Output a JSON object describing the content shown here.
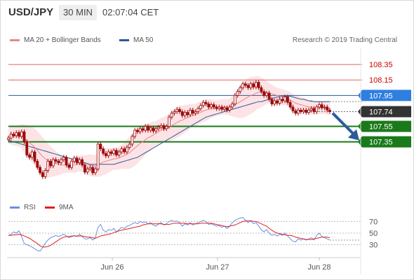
{
  "header": {
    "symbol": "USD/JPY",
    "timeframe": "30 MIN",
    "time": "02:07:04 CET"
  },
  "legend": {
    "ma20": "MA 20 + Bollinger Bands",
    "ma50": "MA 50",
    "credit": "Research © 2019 Trading Central"
  },
  "rsi_legend": {
    "rsi": "RSI",
    "ma9": "9MA"
  },
  "colors": {
    "ma20": "#e9868a",
    "bands": "#fcd7dc",
    "ma50": "#2d5a99",
    "candle": "#9b0d0d",
    "support": "#1a7a1a",
    "resistance": "#e06060",
    "pivot": "#2d5a99",
    "arrow": "#2d5a99",
    "rsi": "#6a8fe0",
    "rsi_ma": "#e02020",
    "current_box": "#333333"
  },
  "chart_data": {
    "type": "candlestick",
    "x_ticks": [
      "Jun 26",
      "Jun 27",
      "Jun 28"
    ],
    "price_labels": [
      {
        "kind": "resistance",
        "value": "108.35"
      },
      {
        "kind": "resistance",
        "value": "108.15"
      },
      {
        "kind": "pivot",
        "value": "107.95"
      },
      {
        "kind": "current",
        "value": "107.74"
      },
      {
        "kind": "support",
        "value": "107.55"
      },
      {
        "kind": "support",
        "value": "107.35"
      }
    ],
    "ylim": [
      106.65,
      108.55
    ],
    "closes": [
      107.4,
      107.45,
      107.43,
      107.47,
      107.42,
      107.48,
      107.35,
      107.18,
      107.15,
      107.22,
      107.1,
      107.02,
      106.95,
      106.9,
      106.98,
      107.1,
      107.04,
      107.12,
      107.1,
      107.08,
      107.12,
      107.15,
      107.05,
      107.02,
      107.1,
      107.14,
      107.08,
      107.12,
      107.05,
      106.96,
      107.0,
      107.02,
      106.95,
      107.0,
      107.32,
      107.26,
      107.2,
      107.17,
      107.22,
      107.2,
      107.24,
      107.18,
      107.22,
      107.26,
      107.22,
      107.28,
      107.32,
      107.42,
      107.5,
      107.48,
      107.52,
      107.5,
      107.55,
      107.5,
      107.53,
      107.49,
      107.52,
      107.54,
      107.56,
      107.52,
      107.55,
      107.67,
      107.72,
      107.74,
      107.77,
      107.74,
      107.69,
      107.73,
      107.7,
      107.76,
      107.72,
      107.74,
      107.78,
      107.82,
      107.86,
      107.84,
      107.8,
      107.83,
      107.8,
      107.78,
      107.8,
      107.77,
      107.79,
      107.76,
      107.8,
      107.84,
      107.95,
      108.0,
      108.05,
      108.1,
      108.08,
      108.05,
      108.1,
      108.06,
      108.12,
      108.05,
      108.0,
      107.95,
      107.98,
      107.9,
      107.84,
      107.88,
      107.85,
      107.9,
      107.88,
      107.93,
      107.86,
      107.8,
      107.75,
      107.72,
      107.76,
      107.74,
      107.76,
      107.73,
      107.76,
      107.78,
      107.74,
      107.8,
      107.83,
      107.79,
      107.8,
      107.76,
      107.74
    ],
    "ma20": [
      107.42,
      107.43,
      107.42,
      107.43,
      107.43,
      107.42,
      107.4,
      107.37,
      107.34,
      107.31,
      107.28,
      107.24,
      107.2,
      107.16,
      107.13,
      107.11,
      107.09,
      107.08,
      107.07,
      107.06,
      107.05,
      107.05,
      107.05,
      107.05,
      107.05,
      107.05,
      107.06,
      107.07,
      107.07,
      107.06,
      107.05,
      107.05,
      107.04,
      107.04,
      107.06,
      107.07,
      107.09,
      107.1,
      107.11,
      107.12,
      107.13,
      107.13,
      107.14,
      107.16,
      107.17,
      107.19,
      107.21,
      107.24,
      107.27,
      107.3,
      107.33,
      107.35,
      107.38,
      107.4,
      107.42,
      107.44,
      107.46,
      107.48,
      107.5,
      107.51,
      107.52,
      107.54,
      107.56,
      107.58,
      107.6,
      107.62,
      107.63,
      107.65,
      107.66,
      107.68,
      107.69,
      107.7,
      107.72,
      107.73,
      107.75,
      107.76,
      107.77,
      107.78,
      107.78,
      107.79,
      107.79,
      107.8,
      107.8,
      107.8,
      107.8,
      107.81,
      107.83,
      107.85,
      107.87,
      107.89,
      107.91,
      107.93,
      107.95,
      107.96,
      107.98,
      107.99,
      107.99,
      107.99,
      107.99,
      107.98,
      107.97,
      107.96,
      107.95,
      107.94,
      107.93,
      107.92,
      107.91,
      107.89,
      107.87,
      107.85,
      107.84,
      107.83,
      107.82,
      107.81,
      107.8,
      107.8,
      107.79,
      107.79,
      107.79,
      107.79,
      107.79,
      107.78,
      107.78
    ],
    "ma50": [
      107.37,
      107.36,
      107.35,
      107.34,
      107.33,
      107.32,
      107.31,
      107.3,
      107.29,
      107.28,
      107.27,
      107.26,
      107.25,
      107.24,
      107.23,
      107.22,
      107.21,
      107.2,
      107.19,
      107.18,
      107.17,
      107.16,
      107.15,
      107.14,
      107.13,
      107.12,
      107.11,
      107.1,
      107.09,
      107.08,
      107.07,
      107.06,
      107.06,
      107.06,
      107.06,
      107.06,
      107.06,
      107.06,
      107.06,
      107.06,
      107.06,
      107.07,
      107.08,
      107.09,
      107.1,
      107.11,
      107.12,
      107.13,
      107.14,
      107.15,
      107.17,
      107.19,
      107.21,
      107.23,
      107.25,
      107.27,
      107.29,
      107.31,
      107.33,
      107.35,
      107.37,
      107.39,
      107.41,
      107.43,
      107.45,
      107.47,
      107.49,
      107.51,
      107.53,
      107.55,
      107.57,
      107.59,
      107.61,
      107.63,
      107.65,
      107.67,
      107.68,
      107.69,
      107.7,
      107.71,
      107.72,
      107.73,
      107.74,
      107.75,
      107.76,
      107.77,
      107.78,
      107.79,
      107.8,
      107.81,
      107.82,
      107.83,
      107.84,
      107.85,
      107.86,
      107.87,
      107.87,
      107.88,
      107.89,
      107.9,
      107.91,
      107.92,
      107.93,
      107.93,
      107.94,
      107.94,
      107.94,
      107.94,
      107.93,
      107.92,
      107.91,
      107.9,
      107.9,
      107.89,
      107.88,
      107.88,
      107.87,
      107.87,
      107.87,
      107.87,
      107.87,
      107.87,
      107.87
    ],
    "band_width": [
      0.1,
      0.11,
      0.12,
      0.13,
      0.14,
      0.16,
      0.18,
      0.2,
      0.22,
      0.23,
      0.24,
      0.25,
      0.25,
      0.25,
      0.24,
      0.22,
      0.2,
      0.18,
      0.16,
      0.14,
      0.12,
      0.11,
      0.1,
      0.1,
      0.1,
      0.1,
      0.1,
      0.1,
      0.11,
      0.12,
      0.13,
      0.14,
      0.14,
      0.14,
      0.16,
      0.17,
      0.17,
      0.17,
      0.16,
      0.15,
      0.14,
      0.14,
      0.15,
      0.16,
      0.17,
      0.19,
      0.21,
      0.22,
      0.23,
      0.23,
      0.22,
      0.21,
      0.2,
      0.19,
      0.18,
      0.17,
      0.16,
      0.16,
      0.16,
      0.16,
      0.17,
      0.18,
      0.19,
      0.2,
      0.2,
      0.2,
      0.19,
      0.18,
      0.17,
      0.16,
      0.15,
      0.14,
      0.14,
      0.14,
      0.14,
      0.14,
      0.13,
      0.12,
      0.11,
      0.1,
      0.1,
      0.1,
      0.1,
      0.1,
      0.11,
      0.13,
      0.16,
      0.19,
      0.21,
      0.23,
      0.24,
      0.24,
      0.24,
      0.23,
      0.22,
      0.21,
      0.19,
      0.17,
      0.15,
      0.13,
      0.12,
      0.11,
      0.1,
      0.1,
      0.1,
      0.1,
      0.1,
      0.1,
      0.1,
      0.1,
      0.1,
      0.1,
      0.1,
      0.1,
      0.09,
      0.09,
      0.09,
      0.09,
      0.08,
      0.08,
      0.08,
      0.08,
      0.08
    ],
    "projection": {
      "from": 107.74,
      "to": 107.35
    },
    "rsi": {
      "levels": [
        70,
        50,
        30
      ],
      "ylim": [
        15,
        85
      ],
      "rsi": [
        46,
        48,
        52,
        50,
        54,
        44,
        32,
        30,
        28,
        26,
        23,
        20,
        19,
        25,
        33,
        38,
        42,
        44,
        46,
        44,
        46,
        48,
        45,
        42,
        44,
        46,
        44,
        48,
        44,
        40,
        40,
        42,
        38,
        42,
        60,
        65,
        55,
        52,
        56,
        55,
        58,
        52,
        56,
        60,
        58,
        62,
        63,
        66,
        68,
        66,
        70,
        68,
        69,
        66,
        68,
        64,
        62,
        66,
        68,
        64,
        66,
        70,
        72,
        70,
        71,
        68,
        62,
        66,
        64,
        68,
        64,
        66,
        68,
        70,
        72,
        70,
        65,
        66,
        64,
        62,
        63,
        60,
        62,
        58,
        62,
        68,
        72,
        74,
        76,
        77,
        72,
        68,
        72,
        66,
        68,
        62,
        56,
        52,
        56,
        50,
        46,
        48,
        45,
        48,
        46,
        50,
        45,
        40,
        36,
        35,
        40,
        38,
        40,
        38,
        40,
        42,
        38,
        46,
        50,
        44,
        42,
        40,
        38
      ],
      "ma9": [
        46,
        46,
        47,
        47,
        48,
        47,
        45,
        43,
        41,
        38,
        35,
        32,
        28,
        26,
        26,
        27,
        29,
        32,
        35,
        38,
        41,
        43,
        44,
        44,
        45,
        45,
        45,
        45,
        45,
        44,
        43,
        43,
        42,
        41,
        43,
        45,
        46,
        47,
        48,
        49,
        51,
        52,
        54,
        55,
        56,
        57,
        58,
        59,
        60,
        61,
        62,
        64,
        65,
        66,
        66,
        66,
        66,
        66,
        66,
        65,
        65,
        65,
        66,
        67,
        67,
        67,
        67,
        67,
        66,
        66,
        66,
        66,
        66,
        67,
        67,
        67,
        67,
        67,
        66,
        65,
        64,
        63,
        62,
        61,
        62,
        63,
        64,
        66,
        68,
        70,
        71,
        71,
        71,
        70,
        70,
        68,
        66,
        64,
        62,
        58,
        55,
        52,
        50,
        49,
        48,
        47,
        46,
        46,
        45,
        43,
        42,
        41,
        40,
        39,
        39,
        39,
        40,
        41,
        42,
        43,
        43,
        43,
        42
      ]
    }
  }
}
